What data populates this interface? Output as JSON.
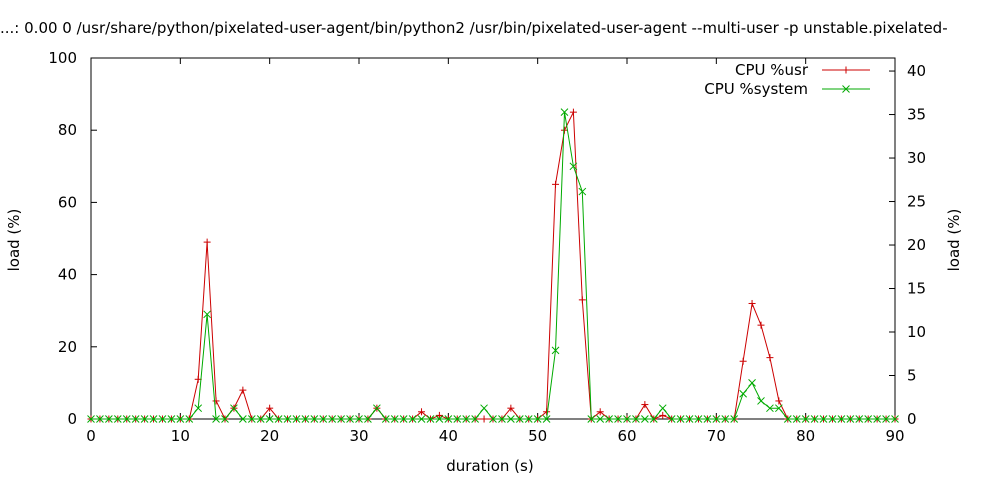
{
  "chart_data": {
    "type": "line",
    "title": "...: 0.00 0 /usr/share/python/pixelated-user-agent/bin/python2 /usr/bin/pixelated-user-agent --multi-user -p unstable.pixelated-",
    "xlabel": "duration (s)",
    "ylabel": "load (%)",
    "y2label": "load (%)",
    "xlim": [
      0,
      90
    ],
    "ylim": [
      0,
      100
    ],
    "y2lim": [
      0,
      41.5
    ],
    "xticks": [
      0,
      10,
      20,
      30,
      40,
      50,
      60,
      70,
      80,
      90
    ],
    "yticks": [
      0,
      20,
      40,
      60,
      80,
      100
    ],
    "y2ticks": [
      0,
      5,
      10,
      15,
      20,
      25,
      30,
      35,
      40
    ],
    "legend_position": "top-right",
    "x": [
      0,
      1,
      2,
      3,
      4,
      5,
      6,
      7,
      8,
      9,
      10,
      11,
      12,
      13,
      14,
      15,
      16,
      17,
      18,
      19,
      20,
      21,
      22,
      23,
      24,
      25,
      26,
      27,
      28,
      29,
      30,
      31,
      32,
      33,
      34,
      35,
      36,
      37,
      38,
      39,
      40,
      41,
      42,
      43,
      44,
      45,
      46,
      47,
      48,
      49,
      50,
      51,
      52,
      53,
      54,
      55,
      56,
      57,
      58,
      59,
      60,
      61,
      62,
      63,
      64,
      65,
      66,
      67,
      68,
      69,
      70,
      71,
      72,
      73,
      74,
      75,
      76,
      77,
      78,
      79,
      80,
      81,
      82,
      83,
      84,
      85,
      86,
      87,
      88,
      89,
      90
    ],
    "series": [
      {
        "name": "CPU %usr",
        "color": "#cc0000",
        "marker": "plus",
        "values": [
          0,
          0,
          0,
          0,
          0,
          0,
          0,
          0,
          0,
          0,
          0,
          0,
          11,
          49,
          5,
          0,
          3,
          8,
          0,
          0,
          3,
          0,
          0,
          0,
          0,
          0,
          0,
          0,
          0,
          0,
          0,
          0,
          3,
          0,
          0,
          0,
          0,
          2,
          0,
          1,
          0,
          0,
          0,
          0,
          0,
          0,
          0,
          3,
          0,
          0,
          0,
          2,
          65,
          80,
          85,
          33,
          0,
          2,
          0,
          0,
          0,
          0,
          4,
          0,
          1,
          0,
          0,
          0,
          0,
          0,
          0,
          0,
          0,
          16,
          32,
          26,
          17,
          5,
          0,
          0,
          0,
          0,
          0,
          0,
          0,
          0,
          0,
          0,
          0,
          0,
          0
        ]
      },
      {
        "name": "CPU %system",
        "color": "#00aa00",
        "marker": "cross",
        "values": [
          0,
          0,
          0,
          0,
          0,
          0,
          0,
          0,
          0,
          0,
          0,
          0,
          3,
          29,
          0,
          0,
          3,
          0,
          0,
          0,
          0,
          0,
          0,
          0,
          0,
          0,
          0,
          0,
          0,
          0,
          0,
          0,
          3,
          0,
          0,
          0,
          0,
          0,
          0,
          0,
          0,
          0,
          0,
          0,
          3,
          0,
          0,
          0,
          0,
          0,
          0,
          0,
          19,
          85,
          70,
          63,
          0,
          0,
          0,
          0,
          0,
          0,
          0,
          0,
          3,
          0,
          0,
          0,
          0,
          0,
          0,
          0,
          0,
          7,
          10,
          5,
          3,
          3,
          0,
          0,
          0,
          0,
          0,
          0,
          0,
          0,
          0,
          0,
          0,
          0,
          0
        ]
      }
    ]
  }
}
